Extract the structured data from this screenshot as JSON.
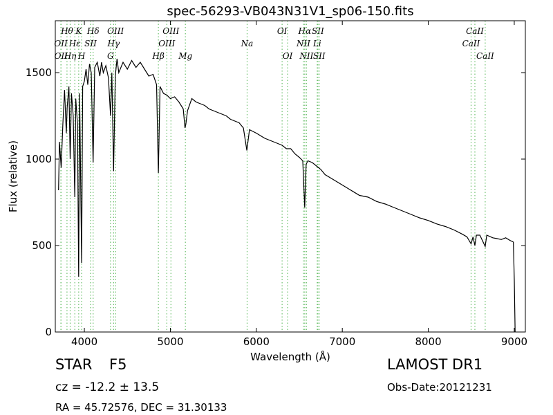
{
  "chart_data": {
    "type": "line",
    "title": "spec-56293-VB043N31V1_sp06-150.fits",
    "x_label": "Wavelength (Å)",
    "y_label": "Flux (relative)",
    "xlim": [
      3662,
      9129
    ],
    "ylim": [
      0,
      1800
    ],
    "xticks": [
      4000,
      5000,
      6000,
      7000,
      8000,
      9000
    ],
    "yticks": [
      0,
      500,
      1000,
      1500
    ],
    "color": "#000000",
    "line_color": "#6abf6a",
    "x": [
      3700,
      3710,
      3730,
      3750,
      3770,
      3790,
      3800,
      3820,
      3835,
      3850,
      3870,
      3889,
      3900,
      3920,
      3934,
      3945,
      3968,
      3980,
      4000,
      4020,
      4040,
      4060,
      4080,
      4102,
      4120,
      4150,
      4180,
      4200,
      4220,
      4250,
      4280,
      4304,
      4320,
      4340,
      4360,
      4380,
      4400,
      4450,
      4500,
      4550,
      4600,
      4650,
      4700,
      4750,
      4800,
      4840,
      4861,
      4880,
      4920,
      4960,
      5000,
      5050,
      5100,
      5150,
      5170,
      5180,
      5200,
      5250,
      5300,
      5350,
      5400,
      5450,
      5500,
      5550,
      5600,
      5650,
      5700,
      5750,
      5800,
      5850,
      5890,
      5920,
      6000,
      6100,
      6200,
      6250,
      6300,
      6350,
      6400,
      6450,
      6500,
      6540,
      6563,
      6580,
      6600,
      6650,
      6700,
      6750,
      6800,
      6900,
      7000,
      7100,
      7200,
      7300,
      7400,
      7500,
      7600,
      7700,
      7800,
      7900,
      8000,
      8100,
      8200,
      8300,
      8400,
      8450,
      8498,
      8520,
      8542,
      8560,
      8600,
      8662,
      8680,
      8750,
      8800,
      8850,
      8900,
      8950,
      8990,
      9000,
      9010
    ],
    "values": [
      820,
      1100,
      950,
      1200,
      1400,
      1150,
      1300,
      1420,
      1000,
      1380,
      1250,
      780,
      1350,
      1200,
      320,
      1380,
      400,
      1420,
      1450,
      1520,
      1430,
      1550,
      1500,
      980,
      1530,
      1560,
      1480,
      1560,
      1500,
      1540,
      1470,
      1250,
      1500,
      930,
      1480,
      1580,
      1500,
      1560,
      1520,
      1570,
      1530,
      1560,
      1520,
      1480,
      1490,
      1430,
      920,
      1420,
      1380,
      1370,
      1350,
      1360,
      1330,
      1290,
      1180,
      1200,
      1280,
      1350,
      1330,
      1320,
      1310,
      1290,
      1280,
      1270,
      1260,
      1250,
      1230,
      1220,
      1210,
      1180,
      1050,
      1170,
      1150,
      1120,
      1100,
      1090,
      1080,
      1060,
      1060,
      1030,
      1010,
      990,
      720,
      970,
      990,
      980,
      960,
      940,
      910,
      880,
      850,
      820,
      790,
      780,
      755,
      740,
      720,
      700,
      680,
      660,
      645,
      625,
      610,
      590,
      565,
      550,
      510,
      550,
      500,
      560,
      560,
      495,
      560,
      545,
      540,
      535,
      545,
      530,
      520,
      300,
      0
    ],
    "spectral_lines": [
      [
        {
          "wavelength": 3798,
          "label": "Hθ"
        },
        {
          "wavelength": 3934,
          "label": "K"
        },
        {
          "wavelength": 4102,
          "label": "Hδ"
        },
        {
          "wavelength": 4363,
          "label": "OIII"
        },
        {
          "wavelength": 5007,
          "label": "OIII"
        },
        {
          "wavelength": 6300,
          "label": "OI"
        },
        {
          "wavelength": 6563,
          "label": "Hα"
        },
        {
          "wavelength": 6716,
          "label": "SII"
        },
        {
          "wavelength": 8542,
          "label": "CaII"
        }
      ],
      [
        {
          "wavelength": 3727,
          "label": "OII"
        },
        {
          "wavelength": 3889,
          "label": "Hε"
        },
        {
          "wavelength": 4072,
          "label": "SII"
        },
        {
          "wavelength": 4340,
          "label": "Hγ"
        },
        {
          "wavelength": 4959,
          "label": "OIII"
        },
        {
          "wavelength": 5893,
          "label": "Na"
        },
        {
          "wavelength": 6548,
          "label": "NII"
        },
        {
          "wavelength": 6708,
          "label": "Li"
        },
        {
          "wavelength": 8498,
          "label": "CaII"
        }
      ],
      [
        {
          "wavelength": 3729,
          "label": "OII"
        },
        {
          "wavelength": 3835,
          "label": "Hη"
        },
        {
          "wavelength": 3968,
          "label": "H"
        },
        {
          "wavelength": 4304,
          "label": "G"
        },
        {
          "wavelength": 4861,
          "label": "Hβ"
        },
        {
          "wavelength": 5175,
          "label": "Mg"
        },
        {
          "wavelength": 6364,
          "label": "OI"
        },
        {
          "wavelength": 6583,
          "label": "NII"
        },
        {
          "wavelength": 6731,
          "label": "SII"
        },
        {
          "wavelength": 8662,
          "label": "CaII"
        }
      ]
    ],
    "footer": {
      "class": "STAR",
      "subclass": "F5",
      "redshift": "cz = -12.2 ± 13.5",
      "coords": "RA = 45.72576, DEC = 31.30133",
      "survey": "LAMOST DR1",
      "obs_date": "Obs-Date:20121231"
    }
  }
}
